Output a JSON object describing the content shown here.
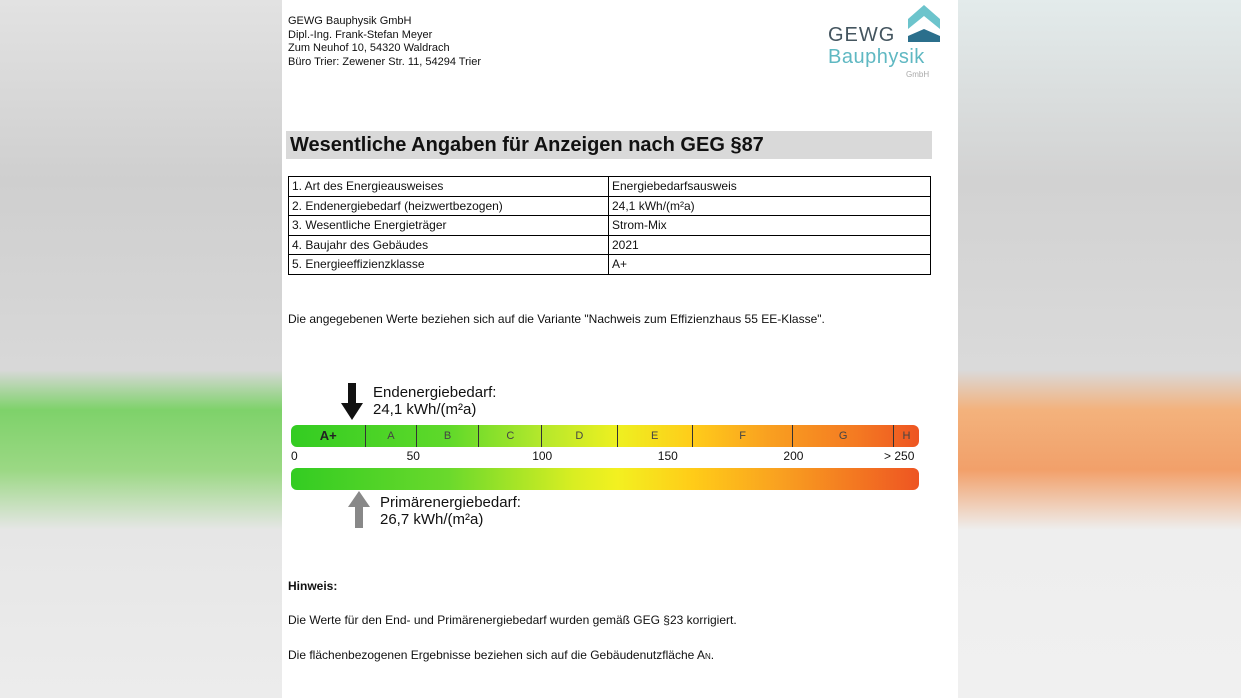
{
  "address": [
    "GEWG Bauphysik GmbH",
    "Dipl.-Ing. Frank-Stefan Meyer",
    "Zum Neuhof 10, 54320 Waldrach",
    "Büro Trier: Zewener Str. 11, 54294 Trier"
  ],
  "logo": {
    "line1": "GEWG",
    "line2": "Bauphysik",
    "line3": "GmbH",
    "colors": {
      "dark": "#44555f",
      "teal": "#5fb8c2"
    }
  },
  "heading": "Wesentliche Angaben für Anzeigen nach GEG §87",
  "table": [
    [
      "1. Art des Energieausweises",
      "Energiebedarfsausweis"
    ],
    [
      "2. Endenergiebedarf (heizwertbezogen)",
      "24,1 kWh/(m²a)"
    ],
    [
      "3. Wesentliche Energieträger",
      "Strom-Mix"
    ],
    [
      "4. Baujahr des Gebäudes",
      "2021"
    ],
    [
      "5. Energieeffizienzklasse",
      "A+"
    ]
  ],
  "variant_note": "Die angegebenen Werte beziehen sich auf die Variante \"Nachweis zum Effizienzhaus 55 EE-Klasse\".",
  "scale": {
    "end_label": "Endenergiebedarf:",
    "end_value_text": "24,1 kWh/(m²a)",
    "end_value": 24.1,
    "primary_label": "Primärenergiebedarf:",
    "primary_value_text": "26,7 kWh/(m²a)",
    "primary_value": 26.7,
    "classes": [
      {
        "name": "A+",
        "to": 30
      },
      {
        "name": "A",
        "to": 50
      },
      {
        "name": "B",
        "to": 75
      },
      {
        "name": "C",
        "to": 100
      },
      {
        "name": "D",
        "to": 130
      },
      {
        "name": "E",
        "to": 160
      },
      {
        "name": "F",
        "to": 200
      },
      {
        "name": "G",
        "to": 240
      },
      {
        "name": "H",
        "to": 250
      }
    ],
    "ticks": [
      "0",
      "50",
      "100",
      "150",
      "200",
      "> 250"
    ],
    "tick_values": [
      0,
      50,
      100,
      150,
      200,
      250
    ],
    "max": 250
  },
  "hint_title": "Hinweis:",
  "hint1": "Die Werte für den End- und Primärenergiebedarf wurden gemäß GEG §23 korrigiert.",
  "hint2": "Die flächenbezogenen Ergebnisse beziehen sich auf die Gebäudenutzfläche A",
  "hint2_sub": "N",
  "hint2_end": "."
}
